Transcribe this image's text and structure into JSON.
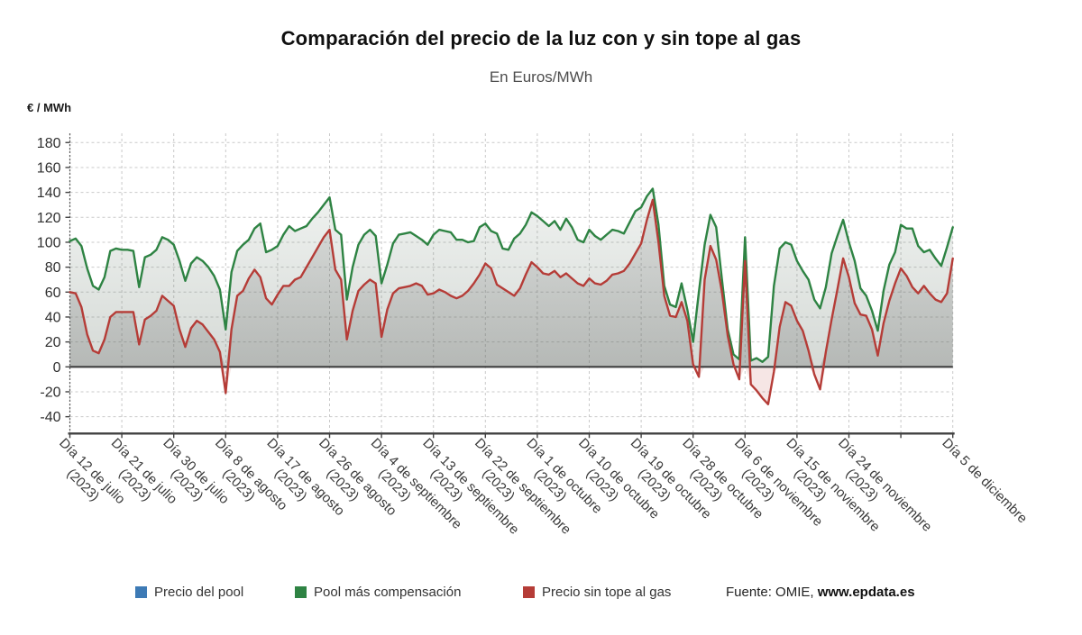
{
  "page": {
    "title": "Comparación del precio de la luz con y sin tope al gas",
    "subtitle": "En Euros/MWh",
    "unit_label": "€ / MWh"
  },
  "legend": [
    {
      "label": "Precio del pool",
      "color": "#3d7ab5"
    },
    {
      "label": "Pool más compensación",
      "color": "#2e8343"
    },
    {
      "label": "Precio sin tope al gas",
      "color": "#b53c37"
    }
  ],
  "source": {
    "prefix": "Fuente: OMIE, ",
    "site": "www.epdata.es"
  },
  "chart_data": {
    "type": "line",
    "title": "Comparación del precio de la luz con y sin tope al gas",
    "subtitle": "En Euros/MWh",
    "ylabel": "€ / MWh",
    "ylim": [
      -40,
      180
    ],
    "y_ticks": [
      180,
      160,
      140,
      120,
      100,
      80,
      60,
      40,
      20,
      0,
      -20,
      -40
    ],
    "grid": true,
    "legend_position": "bottom",
    "points_per_label": 9,
    "x_labels": [
      {
        "text": "Día 12 de julio",
        "year": "(2023)",
        "tick": 0
      },
      {
        "text": "Día 21 de julio",
        "year": "(2023)",
        "tick": 1
      },
      {
        "text": "Día 30 de julio",
        "year": "(2023)",
        "tick": 2
      },
      {
        "text": "Día 8 de agosto",
        "year": "(2023)",
        "tick": 3
      },
      {
        "text": "Día 17 de agosto",
        "year": "(2023)",
        "tick": 4
      },
      {
        "text": "Día 26 de agosto",
        "year": "(2023)",
        "tick": 5
      },
      {
        "text": "Día 4 de septiembre",
        "year": "(2023)",
        "tick": 6
      },
      {
        "text": "Día 13 de septiembre",
        "year": "(2023)",
        "tick": 7
      },
      {
        "text": "Día 22 de septiembre",
        "year": "(2023)",
        "tick": 8
      },
      {
        "text": "Día 1 de octubre",
        "year": "(2023)",
        "tick": 9
      },
      {
        "text": "Día 10 de octubre",
        "year": "(2023)",
        "tick": 10
      },
      {
        "text": "Día 19 de octubre",
        "year": "(2023)",
        "tick": 11
      },
      {
        "text": "Día 28 de octubre",
        "year": "(2023)",
        "tick": 12
      },
      {
        "text": "Día 6 de noviembre",
        "year": "(2023)",
        "tick": 13
      },
      {
        "text": "Día 15 de noviembre",
        "year": "(2023)",
        "tick": 14
      },
      {
        "text": "Día 24 de noviembre",
        "year": "(2023)",
        "tick": 15
      },
      {
        "text": "Día 5 de diciembre",
        "year": "",
        "tick": 17
      }
    ],
    "series": [
      {
        "name": "Pool más compensación",
        "color": "#2e8343",
        "values": [
          101,
          103,
          97,
          79,
          65,
          62,
          72,
          93,
          95,
          94,
          94,
          93,
          64,
          88,
          90,
          94,
          104,
          102,
          98,
          85,
          69,
          83,
          88,
          85,
          80,
          73,
          62,
          30,
          76,
          93,
          98,
          102,
          111,
          115,
          92,
          94,
          97,
          106,
          113,
          109,
          111,
          113,
          119,
          124,
          130,
          136,
          110,
          106,
          54,
          80,
          98,
          106,
          110,
          105,
          67,
          82,
          99,
          106,
          107,
          108,
          105,
          102,
          98,
          106,
          110,
          109,
          108,
          102,
          102,
          100,
          101,
          112,
          115,
          109,
          107,
          95,
          94,
          103,
          107,
          114,
          124,
          121,
          117,
          113,
          117,
          110,
          119,
          112,
          102,
          100,
          110,
          105,
          102,
          106,
          110,
          109,
          107,
          116,
          125,
          128,
          137,
          143,
          114,
          65,
          50,
          48,
          67,
          46,
          20,
          60,
          98,
          122,
          112,
          70,
          30,
          10,
          6,
          104,
          5,
          7,
          4,
          8,
          65,
          95,
          100,
          98,
          85,
          77,
          70,
          54,
          47,
          64,
          91,
          105,
          118,
          100,
          85,
          63,
          57,
          45,
          29,
          61,
          82,
          92,
          114,
          111,
          111,
          97,
          92,
          94,
          87,
          81,
          96,
          112
        ]
      },
      {
        "name": "Precio sin tope al gas",
        "color": "#b53c37",
        "values": [
          60,
          59,
          48,
          26,
          13,
          11,
          22,
          40,
          44,
          44,
          44,
          44,
          18,
          38,
          41,
          45,
          57,
          53,
          49,
          30,
          16,
          31,
          37,
          34,
          28,
          22,
          12,
          -21,
          30,
          57,
          61,
          71,
          78,
          72,
          55,
          50,
          58,
          65,
          65,
          70,
          72,
          80,
          88,
          96,
          104,
          110,
          78,
          70,
          22,
          45,
          61,
          66,
          70,
          67,
          24,
          46,
          59,
          63,
          64,
          65,
          67,
          65,
          58,
          59,
          62,
          60,
          57,
          55,
          57,
          61,
          67,
          74,
          83,
          79,
          66,
          63,
          60,
          57,
          63,
          74,
          84,
          80,
          75,
          74,
          77,
          72,
          75,
          71,
          67,
          65,
          71,
          67,
          66,
          69,
          74,
          75,
          77,
          83,
          91,
          99,
          118,
          134,
          100,
          57,
          41,
          40,
          52,
          37,
          2,
          -8,
          70,
          97,
          86,
          60,
          25,
          2,
          -10,
          85,
          -14,
          -19,
          -25,
          -30,
          -4,
          32,
          52,
          49,
          37,
          29,
          13,
          -6,
          -18,
          12,
          38,
          62,
          87,
          72,
          51,
          42,
          41,
          30,
          9,
          35,
          53,
          67,
          79,
          73,
          64,
          59,
          65,
          59,
          54,
          52,
          59,
          87
        ]
      }
    ]
  }
}
